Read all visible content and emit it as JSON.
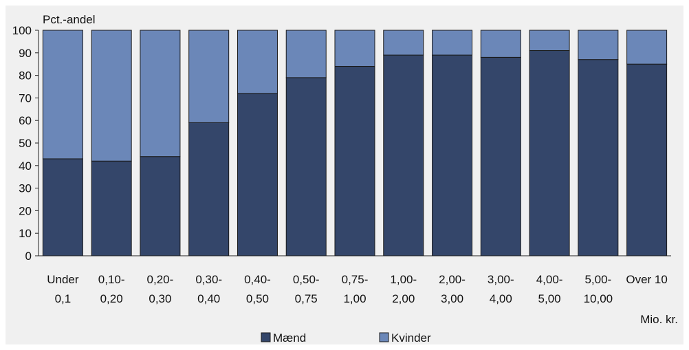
{
  "chart_data": {
    "type": "bar",
    "stacked": true,
    "ylabel": "Pct.-andel",
    "xunit": "Mio. kr.",
    "ylim": [
      0,
      100
    ],
    "yticks": [
      0,
      10,
      20,
      30,
      40,
      50,
      60,
      70,
      80,
      90,
      100
    ],
    "categories": [
      [
        "Under",
        "0,1"
      ],
      [
        "0,10-",
        "0,20"
      ],
      [
        "0,20-",
        "0,30"
      ],
      [
        "0,30-",
        "0,40"
      ],
      [
        "0,40-",
        "0,50"
      ],
      [
        "0,50-",
        "0,75"
      ],
      [
        "0,75-",
        "1,00"
      ],
      [
        "1,00-",
        "2,00"
      ],
      [
        "2,00-",
        "3,00"
      ],
      [
        "3,00-",
        "4,00"
      ],
      [
        "4,00-",
        "5,00"
      ],
      [
        "5,00-",
        "10,00"
      ],
      [
        "Over 10",
        ""
      ]
    ],
    "series": [
      {
        "name": "Mænd",
        "color": "#34466a",
        "values": [
          43,
          42,
          44,
          59,
          72,
          79,
          84,
          89,
          89,
          88,
          91,
          87,
          85
        ]
      },
      {
        "name": "Kvinder",
        "color": "#6b87b8",
        "values": [
          57,
          58,
          56,
          41,
          28,
          21,
          16,
          11,
          11,
          12,
          9,
          13,
          15
        ]
      }
    ],
    "legend_position": "bottom",
    "grid": false
  }
}
